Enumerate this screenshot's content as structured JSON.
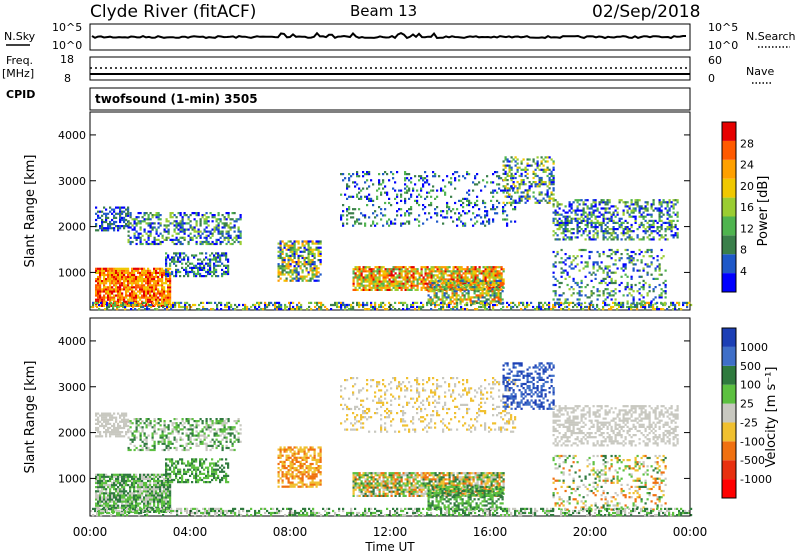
{
  "header": {
    "station": "Clyde River (fitACF)",
    "beam": "Beam 13",
    "date": "02/Sep/2018"
  },
  "top_panels": {
    "nsky_label": "N.Sky",
    "nsearch_label": "N.Search",
    "freq_label_1": "Freq.",
    "freq_label_2": "[MHz]",
    "nave_label": "Nave",
    "cpid_label": "CPID",
    "cpid_value": "twofsound (1-min) 3505",
    "nsky_ticks": [
      "10^5",
      "10^0"
    ],
    "nsearch_ticks": [
      "10^5",
      "10^0"
    ],
    "freq_ticks": [
      "18",
      "8"
    ],
    "nave_ticks": [
      "60",
      "0"
    ]
  },
  "chart_data": [
    {
      "type": "heatmap",
      "title": "",
      "xlabel": "Time UT",
      "ylabel": "Slant Range [km]",
      "x_ticks": [
        "00:00",
        "04:00",
        "08:00",
        "12:00",
        "16:00",
        "20:00",
        "00:00"
      ],
      "y_ticks": [
        "1000",
        "2000",
        "3000",
        "4000"
      ],
      "ylim": [
        180,
        4500
      ],
      "colorbar": {
        "label": "Power [dB]",
        "ticks": [
          "4",
          "8",
          "12",
          "16",
          "20",
          "24",
          "28"
        ],
        "colors": [
          "#0000ff",
          "#1e58c8",
          "#3a7f4a",
          "#4fb44f",
          "#9acd32",
          "#f0c800",
          "#ffa000",
          "#ff5a00",
          "#e60000"
        ]
      }
    },
    {
      "type": "heatmap",
      "title": "",
      "xlabel": "Time UT",
      "ylabel": "Slant Range [km]",
      "x_ticks": [
        "00:00",
        "04:00",
        "08:00",
        "12:00",
        "16:00",
        "20:00",
        "00:00"
      ],
      "y_ticks": [
        "1000",
        "2000",
        "3000",
        "4000"
      ],
      "ylim": [
        180,
        4500
      ],
      "colorbar": {
        "label": "Velocity [m s⁻¹]",
        "ticks": [
          "1000",
          "500",
          "100",
          "25",
          "-25",
          "-100",
          "-500",
          "-1000"
        ],
        "colors": [
          "#1c3fb5",
          "#3f6fc8",
          "#2f7a3e",
          "#5cc040",
          "#c8c8c0",
          "#f0c030",
          "#f07010",
          "#e83010",
          "#ff0000"
        ]
      }
    }
  ]
}
